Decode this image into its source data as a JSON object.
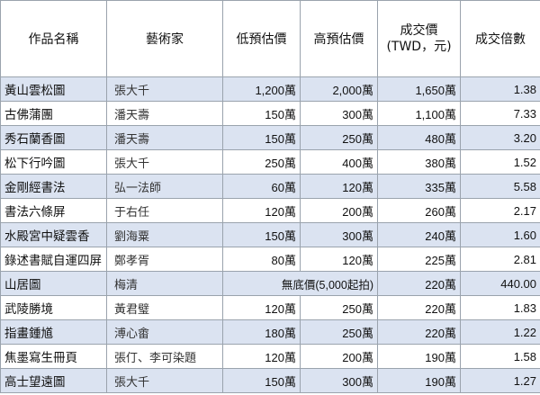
{
  "headers": [
    "作品名稱",
    "藝術家",
    "低預估價",
    "高預估價",
    "成交價",
    "(TWD，元)",
    "成交倍數"
  ],
  "rows": [
    {
      "name": "黃山雲松圖",
      "artist": "張大千",
      "low": "1,200萬",
      "high": "2,000萬",
      "price": "1,650萬",
      "ratio": "1.38"
    },
    {
      "name": "古佛蒲團",
      "artist": "潘天壽",
      "low": "150萬",
      "high": "300萬",
      "price": "1,100萬",
      "ratio": "7.33"
    },
    {
      "name": "秀石蘭香圖",
      "artist": "潘天壽",
      "low": "150萬",
      "high": "250萬",
      "price": "480萬",
      "ratio": "3.20"
    },
    {
      "name": "松下行吟圖",
      "artist": "張大千",
      "low": "250萬",
      "high": "400萬",
      "price": "380萬",
      "ratio": "1.52"
    },
    {
      "name": "金剛經書法",
      "artist": "弘一法師",
      "low": "60萬",
      "high": "120萬",
      "price": "335萬",
      "ratio": "5.58"
    },
    {
      "name": "書法六條屏",
      "artist": "于右任",
      "low": "120萬",
      "high": "200萬",
      "price": "260萬",
      "ratio": "2.17"
    },
    {
      "name": "水殿宮中疑雲香",
      "artist": "劉海粟",
      "low": "150萬",
      "high": "300萬",
      "price": "240萬",
      "ratio": "1.60"
    },
    {
      "name": "錄述書賦自運四屏",
      "artist": "鄭孝胥",
      "low": "80萬",
      "high": "120萬",
      "price": "225萬",
      "ratio": "2.81"
    },
    {
      "name": "山居圖",
      "artist": "梅清",
      "merged": "無底價(5,000起拍)",
      "price": "220萬",
      "ratio": "440.00"
    },
    {
      "name": "武陵勝境",
      "artist": "黃君璧",
      "low": "120萬",
      "high": "250萬",
      "price": "220萬",
      "ratio": "1.83"
    },
    {
      "name": "指畫鍾馗",
      "artist": "溥心畬",
      "low": "180萬",
      "high": "250萬",
      "price": "220萬",
      "ratio": "1.22"
    },
    {
      "name": "焦墨寫生冊頁",
      "artist": "張仃、李可染題",
      "low": "120萬",
      "high": "200萬",
      "price": "190萬",
      "ratio": "1.58"
    },
    {
      "name": "高士望遠圖",
      "artist": "張大千",
      "low": "150萬",
      "high": "300萬",
      "price": "190萬",
      "ratio": "1.27"
    }
  ]
}
